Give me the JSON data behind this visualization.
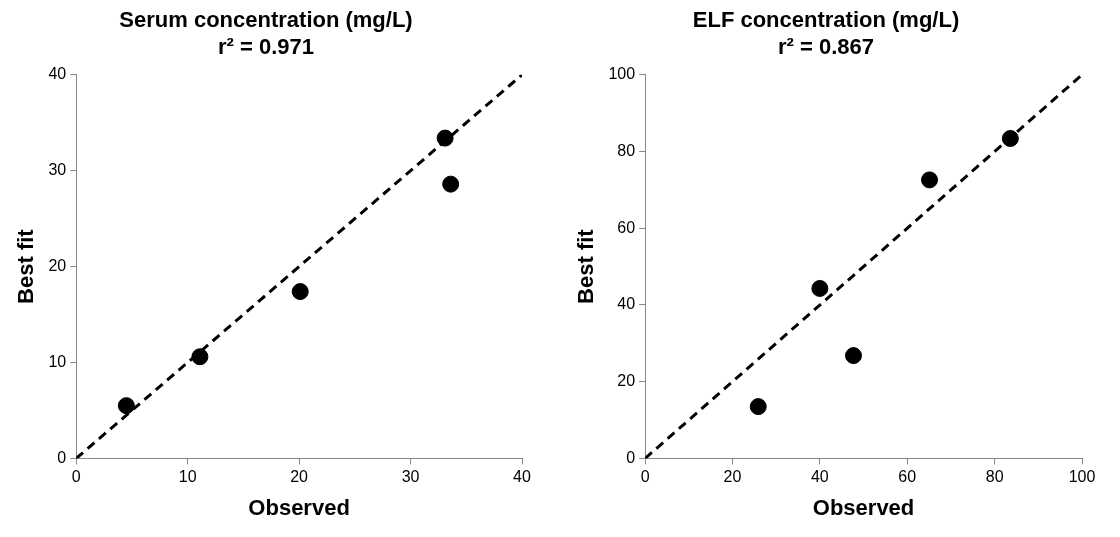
{
  "chart_data": [
    {
      "type": "scatter",
      "title": "Serum concentration (mg/L)",
      "subtitle": "r² = 0.971",
      "xlabel": "Observed",
      "ylabel": "Best fit",
      "xlim": [
        0,
        40
      ],
      "ylim": [
        0,
        40
      ],
      "xticks": [
        0,
        10,
        20,
        30,
        40
      ],
      "yticks": [
        0,
        10,
        20,
        30,
        40
      ],
      "legend": false,
      "series": [
        {
          "type": "scatter",
          "color": "#000000",
          "marker": "circle",
          "x": [
            4.5,
            11.1,
            20.1,
            33.1,
            33.6
          ],
          "values": [
            5.5,
            10.6,
            17.4,
            33.4,
            28.6
          ]
        },
        {
          "type": "line",
          "color": "#000000",
          "marker": "none",
          "line_style": "dashed",
          "x": [
            0,
            40
          ],
          "values": [
            0,
            40
          ]
        }
      ]
    },
    {
      "type": "scatter",
      "title": "ELF concentration (mg/L)",
      "subtitle": "r² = 0.867",
      "xlabel": "Observed",
      "ylabel": "Best fit",
      "xlim": [
        0,
        100
      ],
      "ylim": [
        0,
        100
      ],
      "xticks": [
        0,
        20,
        40,
        60,
        80,
        100
      ],
      "yticks": [
        0,
        20,
        40,
        60,
        80,
        100
      ],
      "legend": false,
      "series": [
        {
          "type": "scatter",
          "color": "#000000",
          "marker": "circle",
          "x": [
            25.9,
            40,
            47.7,
            65.1,
            83.6
          ],
          "values": [
            13.5,
            44.3,
            26.8,
            72.6,
            83.4
          ]
        },
        {
          "type": "line",
          "color": "#000000",
          "marker": "none",
          "line_style": "dashed",
          "x": [
            0,
            100
          ],
          "values": [
            0,
            100
          ]
        }
      ]
    }
  ]
}
